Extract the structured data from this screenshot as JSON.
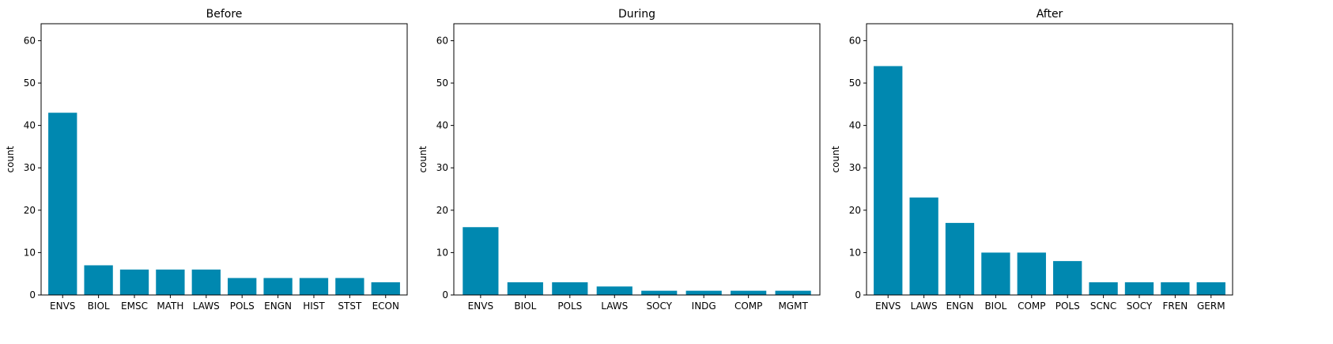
{
  "chart_data": [
    {
      "type": "bar",
      "title": "Before",
      "ylabel": "count",
      "xlabel": "",
      "ylim": [
        0,
        64
      ],
      "yticks": [
        0,
        10,
        20,
        30,
        40,
        50,
        60
      ],
      "categories": [
        "ENVS",
        "BIOL",
        "EMSC",
        "MATH",
        "LAWS",
        "POLS",
        "ENGN",
        "HIST",
        "STST",
        "ECON"
      ],
      "values": [
        43,
        7,
        6,
        6,
        6,
        4,
        4,
        4,
        4,
        3
      ],
      "grid": false,
      "bar_color": "#0088b0"
    },
    {
      "type": "bar",
      "title": "During",
      "ylabel": "count",
      "xlabel": "",
      "ylim": [
        0,
        64
      ],
      "yticks": [
        0,
        10,
        20,
        30,
        40,
        50,
        60
      ],
      "categories": [
        "ENVS",
        "BIOL",
        "POLS",
        "LAWS",
        "SOCY",
        "INDG",
        "COMP",
        "MGMT"
      ],
      "values": [
        16,
        3,
        3,
        2,
        1,
        1,
        1,
        1
      ],
      "grid": false,
      "bar_color": "#0088b0"
    },
    {
      "type": "bar",
      "title": "After",
      "ylabel": "count",
      "xlabel": "",
      "ylim": [
        0,
        64
      ],
      "yticks": [
        0,
        10,
        20,
        30,
        40,
        50,
        60
      ],
      "categories": [
        "ENVS",
        "LAWS",
        "ENGN",
        "BIOL",
        "COMP",
        "POLS",
        "SCNC",
        "SOCY",
        "FREN",
        "GERM"
      ],
      "values": [
        54,
        23,
        17,
        10,
        10,
        8,
        3,
        3,
        3,
        3
      ],
      "grid": false,
      "bar_color": "#0088b0"
    }
  ]
}
